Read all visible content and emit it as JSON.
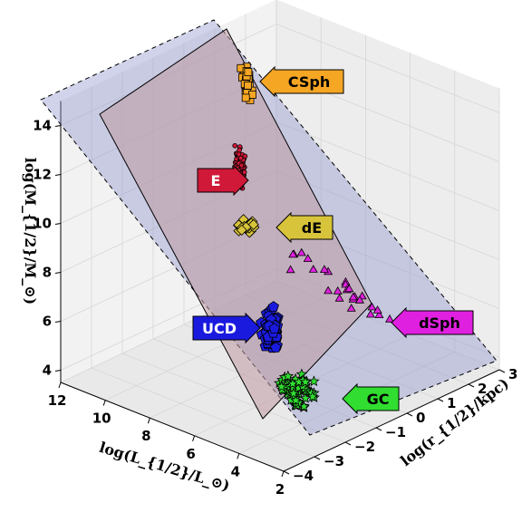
{
  "chart_data": {
    "type": "scatter",
    "projection": "3d",
    "title": "",
    "xlabel": "log(L_{1/2}/L_⊙)",
    "ylabel": "log(r_{1/2}/kpc)",
    "zlabel": "log(M_{1/2}/M_⊙)",
    "x_ticks": [
      "12",
      "10",
      "8",
      "6",
      "4",
      "2"
    ],
    "y_ticks": [
      "−4",
      "−3",
      "−2",
      "−1",
      "0",
      "1",
      "2",
      "3"
    ],
    "z_ticks": [
      "4",
      "6",
      "8",
      "10",
      "12",
      "14"
    ],
    "xlim": [
      2,
      12
    ],
    "ylim": [
      -4,
      3
    ],
    "zlim": [
      3.5,
      15
    ],
    "grid": true,
    "planes": [
      {
        "name": "fundamental-manifold",
        "color": "#8e95cc",
        "style": "dashed"
      },
      {
        "name": "inner-plane",
        "color": "#c09aa3",
        "style": "solid"
      }
    ],
    "series": [
      {
        "name": "CSph",
        "marker": "square",
        "color": "#f5a623",
        "approx": {
          "logL": 11.5,
          "logr": 1.6,
          "logM": 14.6
        }
      },
      {
        "name": "E",
        "marker": "circle",
        "color": "#d01838",
        "approx": {
          "logL": 10.5,
          "logr": 0.7,
          "logM": 12.3
        }
      },
      {
        "name": "dE",
        "marker": "diamond",
        "color": "#d8c43a",
        "approx": {
          "logL": 9.0,
          "logr": 0.0,
          "logM": 10.2
        }
      },
      {
        "name": "dSph",
        "marker": "triangle",
        "color": "#e020e0",
        "approx": {
          "logL": 4.5,
          "logr": -0.6,
          "logM": 7.0
        }
      },
      {
        "name": "UCD",
        "marker": "pentagon",
        "color": "#1a1adf",
        "approx": {
          "logL": 7.0,
          "logr": -1.9,
          "logM": 7.2
        }
      },
      {
        "name": "GC",
        "marker": "star",
        "color": "#30dd30",
        "approx": {
          "logL": 5.0,
          "logr": -2.4,
          "logM": 5.2
        }
      }
    ]
  }
}
